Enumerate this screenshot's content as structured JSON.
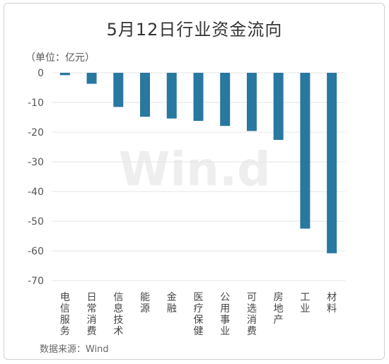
{
  "chart_data": {
    "type": "bar",
    "title": "5月12日行业资金流向",
    "unit_label": "（单位：亿元）",
    "source": "数据来源：Wind",
    "watermark": "Win.d",
    "categories": [
      "电信服务",
      "日常消费",
      "信息技术",
      "能源",
      "金融",
      "医疗保健",
      "公用事业",
      "可选消费",
      "房地产",
      "工业",
      "材料"
    ],
    "values": [
      -0.8,
      -3.7,
      -11.5,
      -14.8,
      -15.4,
      -16.2,
      -17.9,
      -19.6,
      -22.6,
      -52.5,
      -60.8
    ],
    "ylim": [
      -70,
      0
    ],
    "yticks": [
      0,
      -10,
      -20,
      -30,
      -40,
      -50,
      -60,
      -70
    ],
    "grid": true,
    "bar_color": "#2878a0",
    "grid_color": "#e6e6e6",
    "axis_text_color": "#555555"
  }
}
